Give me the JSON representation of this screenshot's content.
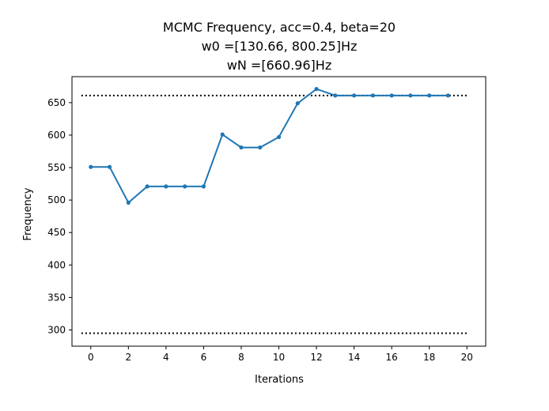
{
  "chart_data": {
    "type": "line",
    "title_lines": [
      "MCMC Frequency, acc=0.4, beta=20",
      "w0 =[130.66, 800.25]Hz",
      "wN =[660.96]Hz"
    ],
    "xlabel": "Iterations",
    "ylabel": "Frequency",
    "xlim": [
      -1,
      21
    ],
    "ylim": [
      275,
      690
    ],
    "xticks": [
      0,
      2,
      4,
      6,
      8,
      10,
      12,
      14,
      16,
      18,
      20
    ],
    "yticks": [
      300,
      350,
      400,
      450,
      500,
      550,
      600,
      650
    ],
    "grid": false,
    "series": [
      {
        "color": "#1f77b4",
        "marker": "dot",
        "x": [
          0,
          1,
          2,
          3,
          4,
          5,
          6,
          7,
          8,
          9,
          10,
          11,
          12,
          13,
          14,
          15,
          16,
          17,
          18,
          19
        ],
        "y": [
          551,
          551,
          496,
          521,
          521,
          521,
          521,
          601,
          581,
          581,
          597,
          649,
          671,
          661,
          661,
          661,
          661,
          661,
          661,
          661
        ]
      }
    ],
    "reference_lines": [
      {
        "y": 660.96,
        "style": "dotted",
        "color": "#000000",
        "x_range": [
          -0.5,
          20
        ]
      },
      {
        "y": 295,
        "style": "dotted",
        "color": "#000000",
        "x_range": [
          -0.5,
          20
        ]
      }
    ]
  }
}
